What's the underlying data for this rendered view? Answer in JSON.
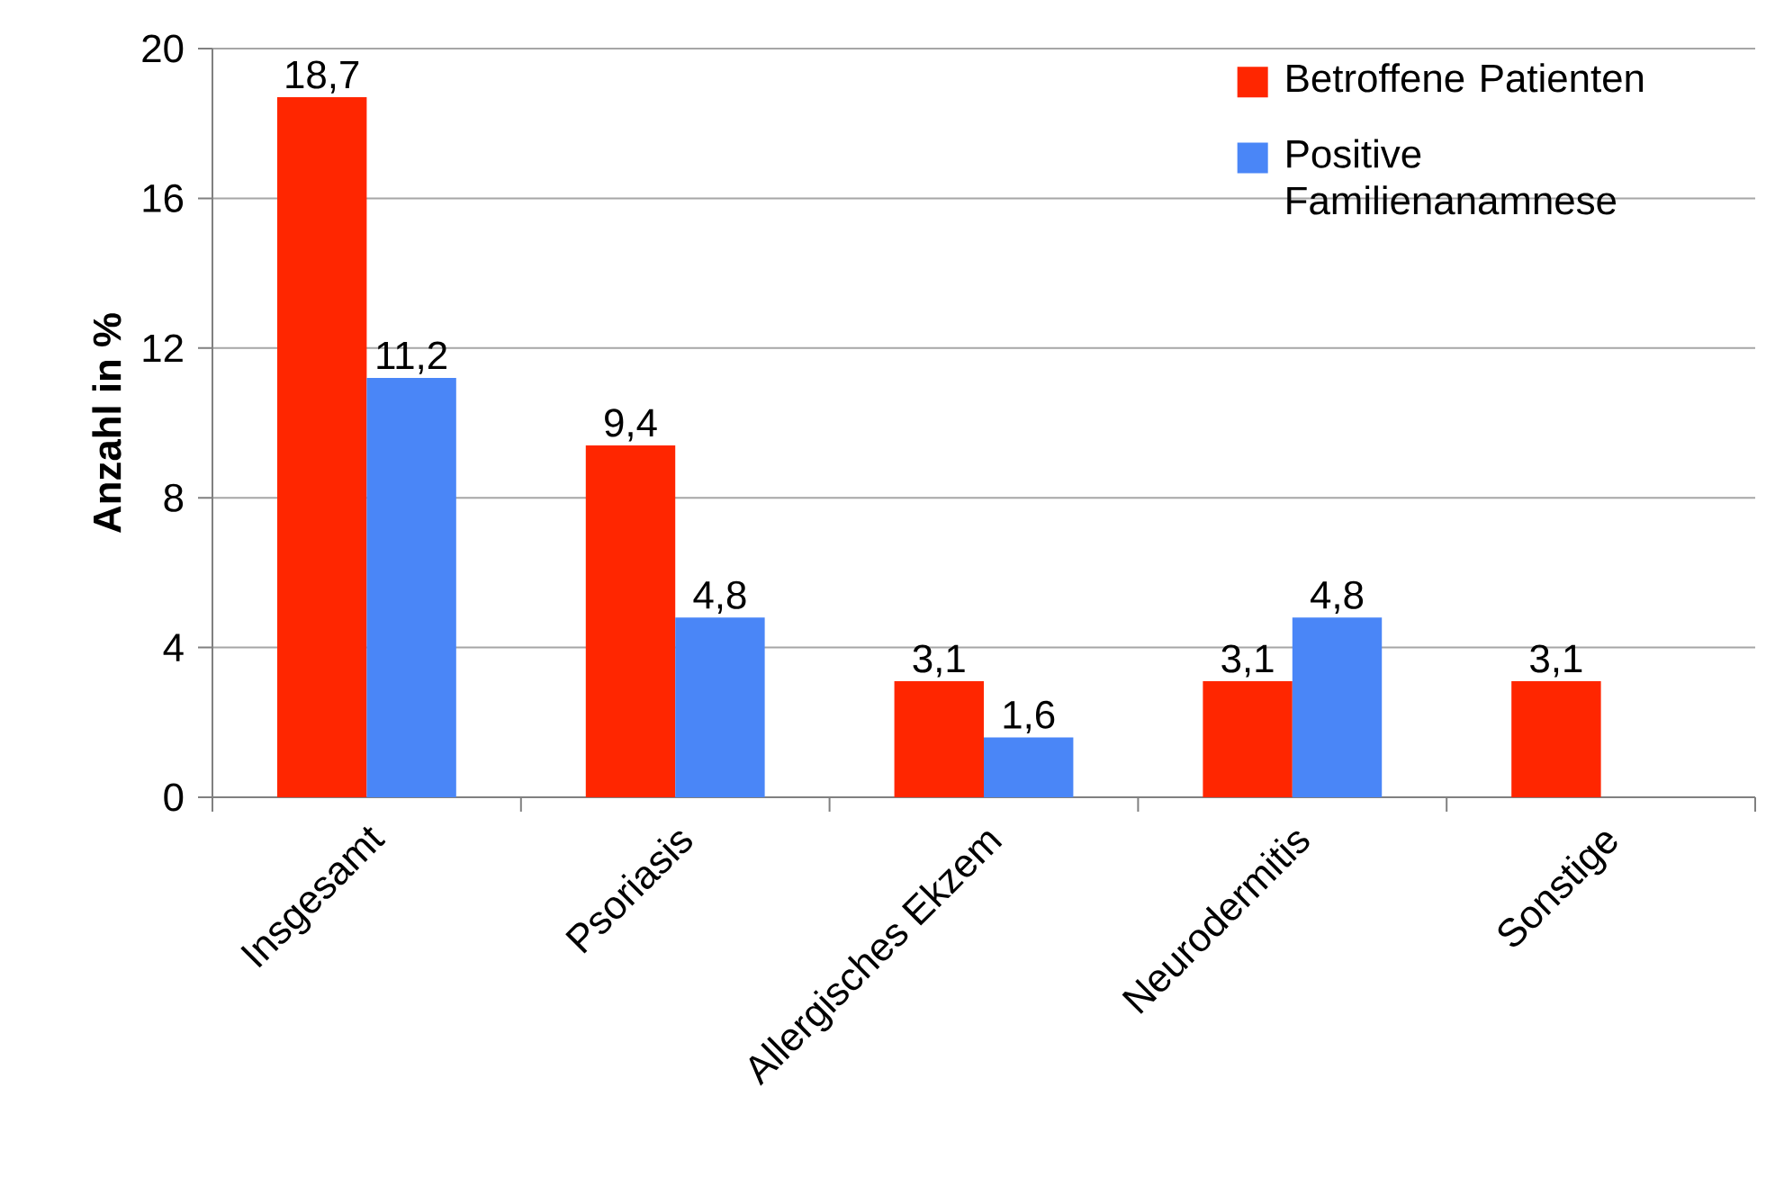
{
  "chart_data": {
    "type": "bar",
    "ylabel": "Anzahl in %",
    "categories": [
      "Insgesamt",
      "Psoriasis",
      "Allergisches Ekzem",
      "Neurodermitis",
      "Sonstige"
    ],
    "series": [
      {
        "name": "Betroffene Patienten",
        "color": "#ff2600",
        "values": [
          18.7,
          9.4,
          3.1,
          3.1,
          3.1
        ],
        "value_labels": [
          "18,7",
          "9,4",
          "3,1",
          "3,1",
          "3,1"
        ]
      },
      {
        "name": "Positive Familienanamnese",
        "color": "#4a86f7",
        "values": [
          11.2,
          4.8,
          1.6,
          4.8,
          null
        ],
        "value_labels": [
          "11,2",
          "4,8",
          "1,6",
          "4,8",
          null
        ]
      }
    ],
    "ylim": [
      0,
      20
    ],
    "yticks": [
      0,
      4,
      8,
      12,
      16,
      20
    ],
    "grid": "y",
    "legend": "top right"
  }
}
